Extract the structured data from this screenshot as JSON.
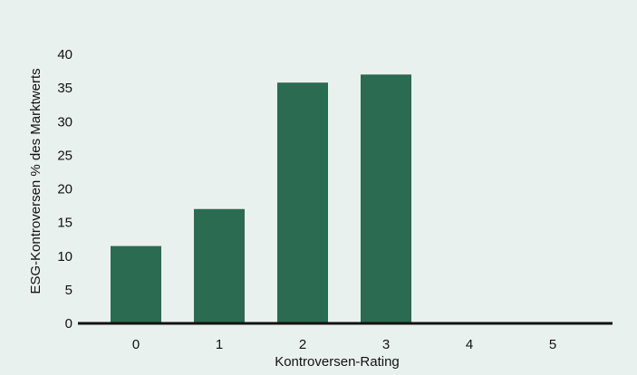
{
  "chart_data": {
    "type": "bar",
    "categories": [
      "0",
      "1",
      "2",
      "3",
      "4",
      "5"
    ],
    "values": [
      11.5,
      17,
      35.8,
      37,
      0,
      0
    ],
    "title": "",
    "xlabel": "Kontroversen-Rating",
    "ylabel": "ESG-Kontroversen % des Marktwerts",
    "ylim": [
      0,
      40
    ],
    "yticks": [
      0,
      5,
      10,
      15,
      20,
      25,
      30,
      35,
      40
    ],
    "grid": false,
    "legend": "none",
    "colors": {
      "bar": "#2b6b51",
      "axis": "#111111",
      "background": "#e9f1ee"
    }
  }
}
